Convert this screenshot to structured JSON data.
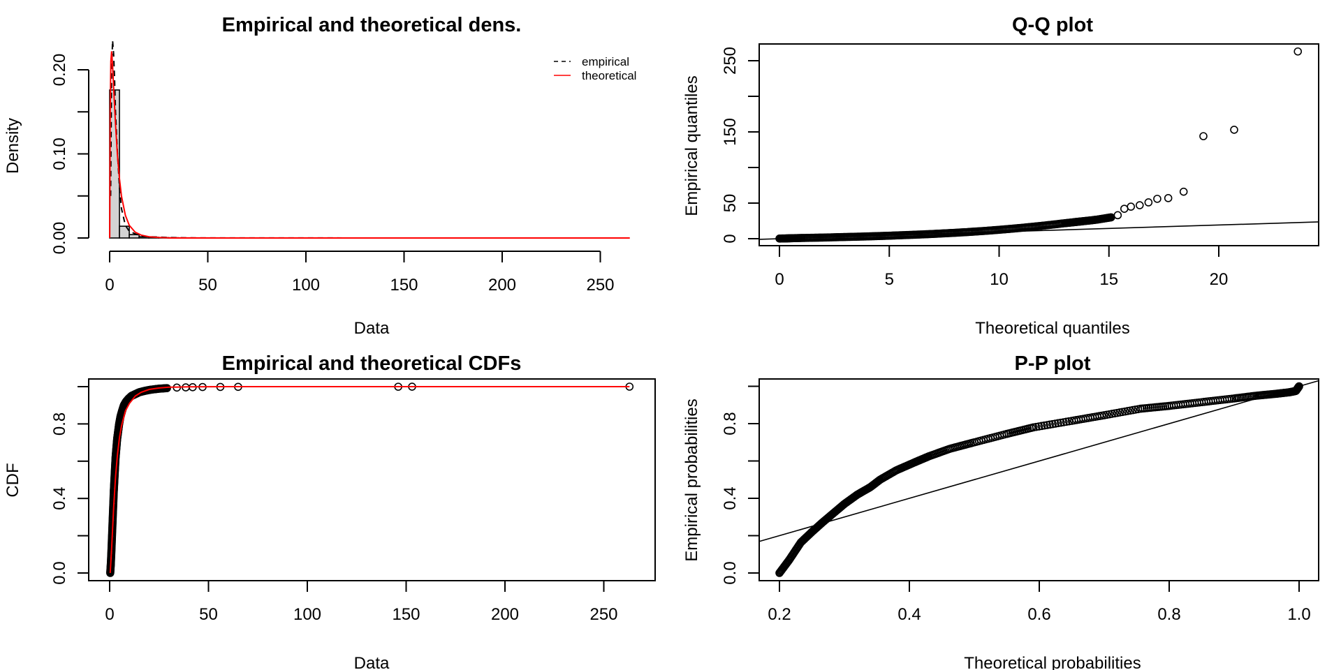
{
  "chart_data": [
    {
      "type": "bar",
      "panel": "density",
      "title": "Empirical and theoretical dens.",
      "xlabel": "Data",
      "ylabel": "Density",
      "xlim": [
        0,
        265
      ],
      "ylim": [
        0,
        0.23
      ],
      "xticks": [
        0,
        50,
        100,
        150,
        200,
        250
      ],
      "xtick_labels": [
        "0",
        "50",
        "100",
        "150",
        "200",
        "250"
      ],
      "yticks": [
        0,
        0.05,
        0.1,
        0.15,
        0.2
      ],
      "ytick_labels": [
        "0.00",
        "",
        "0.10",
        "",
        "0.20"
      ],
      "histogram": {
        "bin_edges": [
          0,
          5,
          10,
          15,
          20,
          25,
          30,
          35
        ],
        "density": [
          0.176,
          0.014,
          0.004,
          0.0015,
          0.0008,
          0.0004,
          0.0003
        ]
      },
      "series": [
        {
          "name": "empirical",
          "style": "dashed",
          "color": "#000000",
          "x": [
            0.5,
            1,
            1.5,
            2,
            2.5,
            3,
            4,
            5,
            6,
            8,
            10,
            15,
            20,
            30,
            40,
            60,
            100,
            150,
            265
          ],
          "y": [
            0.05,
            0.2,
            0.235,
            0.22,
            0.19,
            0.15,
            0.1,
            0.06,
            0.035,
            0.015,
            0.008,
            0.003,
            0.0015,
            0.0006,
            0.0002,
            0.0001,
            5e-05,
            3e-05,
            0.0
          ]
        },
        {
          "name": "theoretical",
          "style": "solid",
          "color": "#ff0000",
          "x": [
            0.05,
            0.3,
            0.6,
            1,
            1.5,
            2,
            3,
            4,
            5,
            6,
            8,
            10,
            13,
            16,
            20,
            25,
            30,
            40,
            60,
            100,
            150,
            200,
            265
          ],
          "y": [
            0.0,
            0.15,
            0.21,
            0.222,
            0.205,
            0.18,
            0.135,
            0.098,
            0.07,
            0.05,
            0.027,
            0.015,
            0.007,
            0.0035,
            0.0015,
            0.0006,
            0.0002,
            5e-05,
            0.0,
            0.0,
            0.0,
            0.0,
            0.0
          ]
        }
      ],
      "legend": {
        "position": "top-right",
        "entries": [
          "empirical",
          "theoretical"
        ]
      }
    },
    {
      "type": "scatter",
      "panel": "qq",
      "title": "Q-Q plot",
      "xlabel": "Theoretical quantiles",
      "ylabel": "Empirical quantiles",
      "xlim": [
        -0.9,
        24.6
      ],
      "ylim": [
        -10,
        273
      ],
      "xticks": [
        0,
        5,
        10,
        15,
        20
      ],
      "xtick_labels": [
        "0",
        "5",
        "10",
        "15",
        "20"
      ],
      "yticks": [
        0,
        50,
        100,
        150,
        200,
        250
      ],
      "ytick_labels": [
        "0",
        "50",
        "",
        "150",
        "",
        "250"
      ],
      "reference_line": {
        "slope": 0.96,
        "intercept": 0
      },
      "points": {
        "x": [
          0.0,
          0.3,
          0.6,
          1.0,
          1.5,
          2.0,
          2.5,
          3.0,
          3.5,
          4.0,
          4.5,
          5.0,
          5.5,
          6.0,
          6.5,
          7.0,
          7.5,
          8.0,
          8.5,
          9.0,
          9.5,
          10.0,
          10.5,
          11.0,
          11.5,
          12.0,
          12.5,
          13.0,
          13.3,
          13.6,
          13.9,
          14.2,
          14.5,
          14.8,
          15.1,
          15.4,
          15.7,
          16.0,
          16.4,
          16.8,
          17.2,
          17.7,
          18.4,
          19.3,
          20.7,
          23.6
        ],
        "y": [
          0.2,
          0.4,
          0.7,
          1.0,
          1.3,
          1.6,
          2.0,
          2.4,
          2.8,
          3.2,
          3.7,
          4.2,
          4.8,
          5.4,
          6.0,
          6.7,
          7.5,
          8.3,
          9.2,
          10.2,
          11.3,
          12.5,
          13.8,
          15.2,
          16.7,
          18.3,
          20.0,
          21.8,
          22.8,
          23.8,
          24.8,
          25.8,
          27.0,
          28.5,
          30.0,
          33.0,
          42.0,
          45.0,
          47.0,
          51.0,
          56.0,
          57.0,
          66.0,
          144.0,
          153.0,
          263.0
        ]
      }
    },
    {
      "type": "line",
      "panel": "cdf",
      "title": "Empirical and theoretical CDFs",
      "xlabel": "Data",
      "ylabel": "CDF",
      "xlim": [
        -10.5,
        276
      ],
      "ylim": [
        -0.04,
        1.04
      ],
      "xticks": [
        0,
        50,
        100,
        150,
        200,
        250
      ],
      "xtick_labels": [
        "0",
        "50",
        "100",
        "150",
        "200",
        "250"
      ],
      "yticks": [
        0,
        0.2,
        0.4,
        0.6,
        0.8,
        1.0
      ],
      "ytick_labels": [
        "0.0",
        "",
        "0.4",
        "",
        "0.8",
        ""
      ],
      "empirical_points": {
        "x": [
          0.3,
          0.6,
          0.9,
          1.2,
          1.5,
          1.8,
          2.1,
          2.4,
          2.7,
          3.0,
          3.4,
          3.8,
          4.3,
          4.8,
          5.5,
          6.3,
          7.2,
          8.3,
          9.5,
          11,
          13,
          15,
          18,
          21,
          25,
          29,
          34,
          38.5,
          42,
          47,
          56,
          65,
          146,
          153,
          263
        ],
        "y": [
          0.0,
          0.05,
          0.12,
          0.2,
          0.28,
          0.36,
          0.44,
          0.5,
          0.56,
          0.62,
          0.67,
          0.72,
          0.76,
          0.8,
          0.84,
          0.87,
          0.9,
          0.92,
          0.935,
          0.95,
          0.96,
          0.97,
          0.978,
          0.984,
          0.989,
          0.992,
          0.995,
          0.996,
          0.997,
          0.998,
          0.9985,
          0.999,
          0.9995,
          0.9998,
          1.0
        ]
      },
      "theoretical_line": {
        "color": "#ff0000",
        "x": [
          0.3,
          1,
          2,
          3,
          4,
          5,
          6,
          8,
          10,
          13,
          16,
          20,
          25,
          30,
          40,
          60,
          100,
          150,
          200,
          263
        ],
        "y": [
          0.0,
          0.13,
          0.35,
          0.52,
          0.64,
          0.73,
          0.79,
          0.87,
          0.91,
          0.95,
          0.97,
          0.985,
          0.993,
          0.997,
          0.999,
          1.0,
          1.0,
          1.0,
          1.0,
          1.0
        ]
      }
    },
    {
      "type": "scatter",
      "panel": "pp",
      "title": "P-P plot",
      "xlabel": "Theoretical probabilities",
      "ylabel": "Empirical probabilities",
      "xlim": [
        0.169,
        1.031
      ],
      "ylim": [
        -0.04,
        1.04
      ],
      "xticks": [
        0.2,
        0.4,
        0.6,
        0.8,
        1.0
      ],
      "xtick_labels": [
        "0.2",
        "0.4",
        "0.6",
        "0.8",
        "1.0"
      ],
      "yticks": [
        0,
        0.2,
        0.4,
        0.6,
        0.8,
        1.0
      ],
      "ytick_labels": [
        "0.0",
        "",
        "0.4",
        "",
        "0.8",
        ""
      ],
      "reference_line": {
        "slope": 1,
        "intercept": 0
      },
      "points": {
        "x": [
          0.2,
          0.215,
          0.233,
          0.25,
          0.266,
          0.283,
          0.3,
          0.32,
          0.34,
          0.355,
          0.38,
          0.409,
          0.43,
          0.462,
          0.5,
          0.55,
          0.591,
          0.65,
          0.7,
          0.756,
          0.8,
          0.85,
          0.9,
          0.935,
          0.965,
          0.985,
          0.995,
          0.998,
          1.0
        ],
        "y": [
          0.0,
          0.07,
          0.164,
          0.22,
          0.27,
          0.32,
          0.37,
          0.42,
          0.46,
          0.5,
          0.55,
          0.594,
          0.625,
          0.665,
          0.7,
          0.745,
          0.78,
          0.815,
          0.845,
          0.88,
          0.895,
          0.915,
          0.935,
          0.95,
          0.96,
          0.968,
          0.975,
          0.99,
          1.0
        ]
      }
    }
  ]
}
